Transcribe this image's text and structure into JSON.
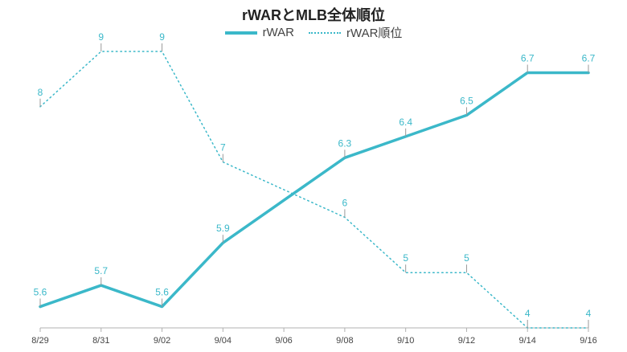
{
  "colors": {
    "series": "#3bb8c9",
    "axis": "#b0b0b0",
    "text": "#444444"
  },
  "chart_data": {
    "type": "line",
    "title": "rWARとMLB全体順位",
    "xlabel": "",
    "ylabel": "",
    "legend_position": "top",
    "grid": false,
    "categories": [
      "8/29",
      "8/31",
      "9/02",
      "9/04",
      "9/06",
      "9/08",
      "9/10",
      "9/12",
      "9/14",
      "9/16"
    ],
    "series": [
      {
        "name": "rWAR",
        "style": "solid",
        "values": [
          5.6,
          5.7,
          5.6,
          5.9,
          6.1,
          6.3,
          6.4,
          6.5,
          6.7,
          6.7
        ],
        "labels": [
          "5.6",
          "5.7",
          "5.6",
          "5.9",
          "",
          "6.3",
          "6.4",
          "6.5",
          "6.7",
          "6.7"
        ],
        "ylim": [
          5.5,
          6.8
        ]
      },
      {
        "name": "rWAR順位",
        "style": "dotted",
        "values": [
          8,
          9,
          9,
          7,
          6.5,
          6,
          5,
          5,
          4,
          4
        ],
        "labels": [
          "8",
          "9",
          "9",
          "7",
          "",
          "6",
          "5",
          "5",
          "4",
          "4"
        ],
        "ylim": [
          4,
          9
        ]
      }
    ]
  }
}
